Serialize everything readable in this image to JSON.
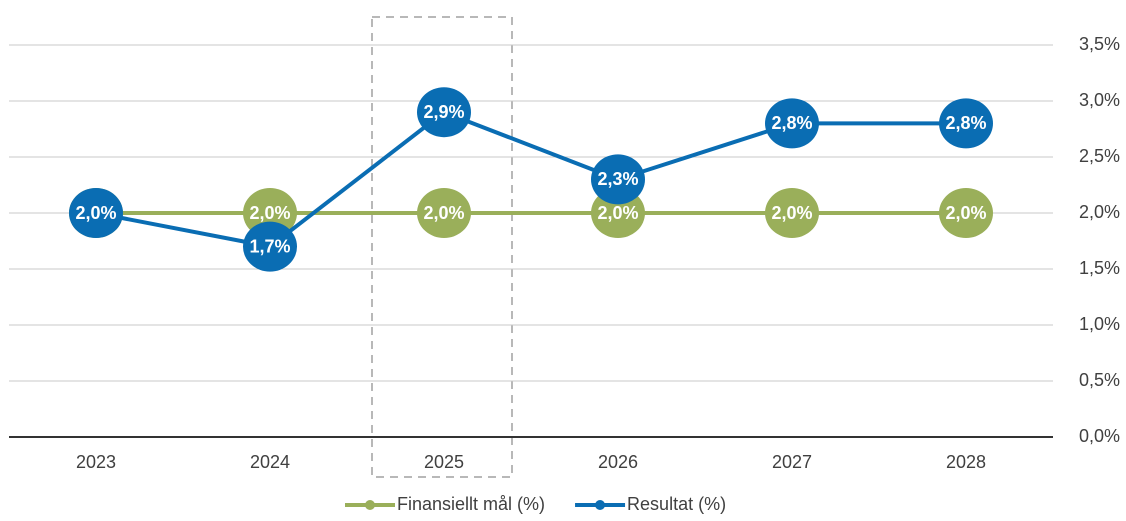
{
  "chart_data": {
    "type": "line",
    "categories": [
      "2023",
      "2024",
      "2025",
      "2026",
      "2027",
      "2028"
    ],
    "series": [
      {
        "name": "Finansiellt mål (%)",
        "color": "#9aaf5a",
        "values": [
          2.0,
          2.0,
          2.0,
          2.0,
          2.0,
          2.0
        ],
        "value_labels": [
          "2,0%",
          "2,0%",
          "2,0%",
          "2,0%",
          "2,0%",
          "2,0%"
        ]
      },
      {
        "name": "Resultat (%)",
        "color": "#0a6db3",
        "values": [
          2.0,
          1.7,
          2.9,
          2.3,
          2.8,
          2.8
        ],
        "value_labels": [
          "2,0%",
          "1,7%",
          "2,9%",
          "2,3%",
          "2,8%",
          "2,8%"
        ]
      }
    ],
    "ylim": [
      0,
      3.5
    ],
    "yticks": [
      {
        "value": 0,
        "label": "0,0%"
      },
      {
        "value": 0.5,
        "label": "0,5%"
      },
      {
        "value": 1,
        "label": "1,0%"
      },
      {
        "value": 1.5,
        "label": "1,5%"
      },
      {
        "value": 2,
        "label": "2,0%"
      },
      {
        "value": 2.5,
        "label": "2,5%"
      },
      {
        "value": 3,
        "label": "3,0%"
      },
      {
        "value": 3.5,
        "label": "3,5%"
      }
    ],
    "grid": true,
    "legend": "bottom"
  }
}
